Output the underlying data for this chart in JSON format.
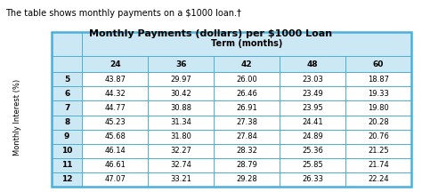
{
  "title": "Monthly Payments (dollars) per $1000 Loan",
  "caption": "The table shows monthly payments on a $1000 loan.†",
  "term_label": "Term (months)",
  "col_header": [
    "",
    "24",
    "36",
    "42",
    "48",
    "60"
  ],
  "row_header": [
    "5",
    "6",
    "7",
    "8",
    "9",
    "10",
    "11",
    "12"
  ],
  "row_axis_label": "Monthly Interest (%)",
  "data": [
    [
      43.87,
      29.97,
      26.0,
      23.03,
      18.87
    ],
    [
      44.32,
      30.42,
      26.46,
      23.49,
      19.33
    ],
    [
      44.77,
      30.88,
      26.91,
      23.95,
      19.8
    ],
    [
      45.23,
      31.34,
      27.38,
      24.41,
      20.28
    ],
    [
      45.68,
      31.8,
      27.84,
      24.89,
      20.76
    ],
    [
      46.14,
      32.27,
      28.32,
      25.36,
      21.25
    ],
    [
      46.61,
      32.74,
      28.79,
      25.85,
      21.74
    ],
    [
      47.07,
      33.21,
      29.28,
      26.33,
      22.24
    ]
  ],
  "header_bg": "#cce8f4",
  "table_border": "#4ab0d9",
  "cell_bg": "#ffffff",
  "caption_style": "normal",
  "title_fontsize": 8,
  "caption_fontsize": 7,
  "header_fontsize": 6.5,
  "data_fontsize": 6,
  "axis_label_fontsize": 6
}
